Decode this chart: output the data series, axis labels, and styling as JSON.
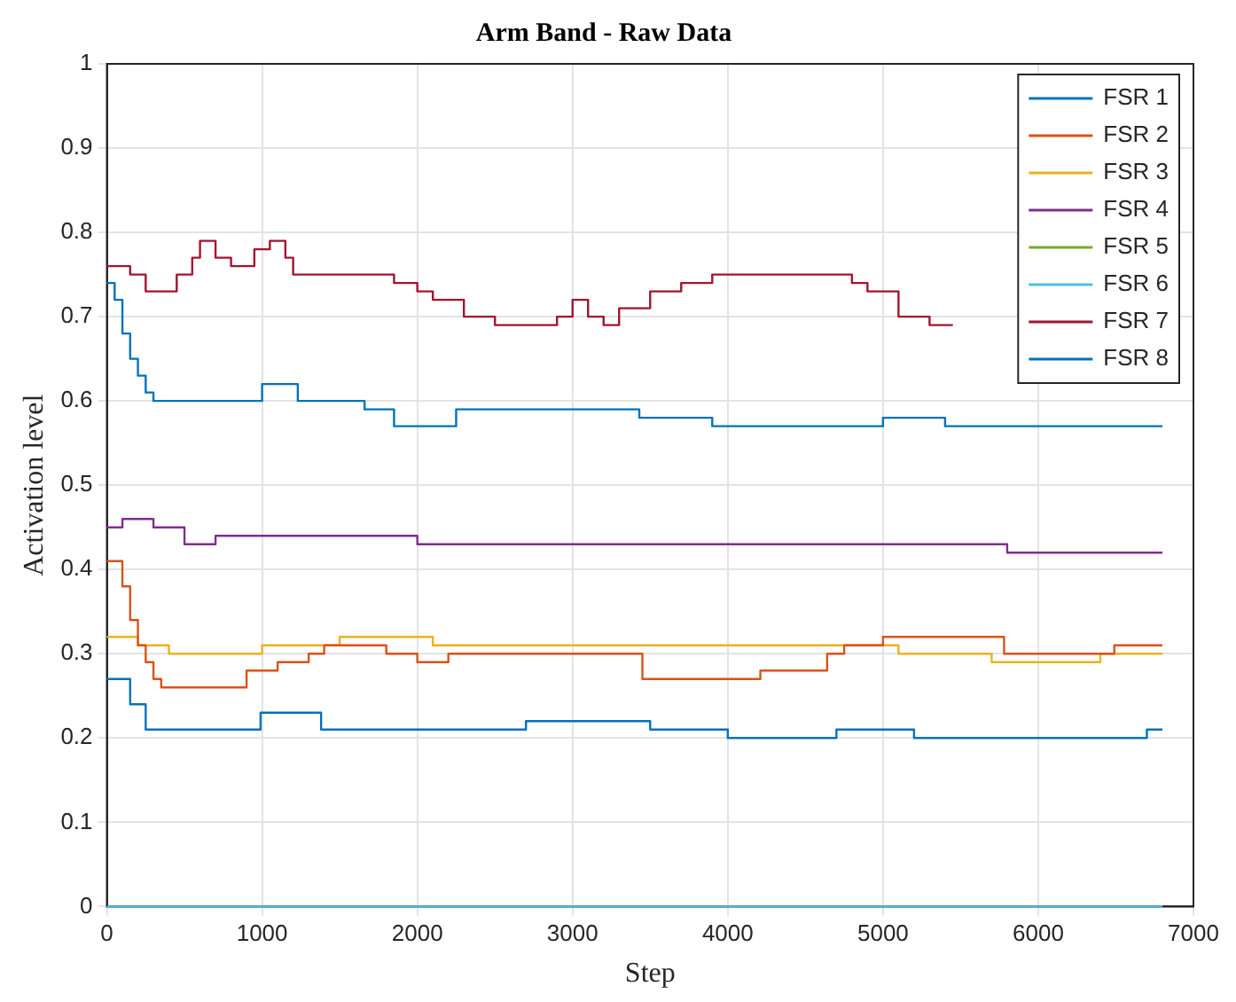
{
  "chart_data": {
    "type": "step",
    "title": "Arm Band - Raw Data",
    "xlabel": "Step",
    "ylabel": "Activation level",
    "xlim": [
      0,
      7000
    ],
    "xticks": [
      0,
      1000,
      2000,
      3000,
      4000,
      5000,
      6000,
      7000
    ],
    "ylim": [
      0,
      1
    ],
    "yticks": [
      0,
      0.1,
      0.2,
      0.3,
      0.4,
      0.5,
      0.6,
      0.7,
      0.8,
      0.9,
      1
    ],
    "grid": true,
    "legend": "top right",
    "series": [
      {
        "name": "FSR 1",
        "color": "#0072bd",
        "x": [
          0,
          50,
          100,
          150,
          200,
          250,
          300,
          1000,
          1230,
          1660,
          1850,
          2250,
          3430,
          3900,
          5000,
          5400,
          6800
        ],
        "values": [
          0.74,
          0.72,
          0.68,
          0.65,
          0.63,
          0.61,
          0.6,
          0.62,
          0.6,
          0.59,
          0.57,
          0.59,
          0.58,
          0.57,
          0.58,
          0.57,
          0.57
        ]
      },
      {
        "name": "FSR 2",
        "color": "#d95319",
        "x": [
          0,
          100,
          150,
          200,
          250,
          300,
          350,
          900,
          1100,
          1300,
          1400,
          1800,
          2000,
          2200,
          2500,
          3450,
          4210,
          4640,
          4750,
          5000,
          5780,
          6490,
          6800
        ],
        "values": [
          0.41,
          0.38,
          0.34,
          0.31,
          0.29,
          0.27,
          0.26,
          0.28,
          0.29,
          0.3,
          0.31,
          0.3,
          0.29,
          0.3,
          0.3,
          0.27,
          0.28,
          0.3,
          0.31,
          0.32,
          0.3,
          0.31,
          0.31
        ]
      },
      {
        "name": "FSR 3",
        "color": "#edb120",
        "x": [
          0,
          200,
          400,
          900,
          1000,
          1500,
          2100,
          3500,
          5100,
          5700,
          6400,
          6800
        ],
        "values": [
          0.32,
          0.31,
          0.3,
          0.3,
          0.31,
          0.32,
          0.31,
          0.31,
          0.3,
          0.29,
          0.3,
          0.3
        ]
      },
      {
        "name": "FSR 4",
        "color": "#7e2f8e",
        "x": [
          0,
          100,
          300,
          500,
          700,
          2000,
          5800,
          6800
        ],
        "values": [
          0.45,
          0.46,
          0.45,
          0.43,
          0.44,
          0.43,
          0.42,
          0.42
        ]
      },
      {
        "name": "FSR 5",
        "color": "#77ac30"
      },
      {
        "name": "FSR 6",
        "color": "#4dbeee",
        "x": [
          0,
          6800
        ],
        "values": [
          0,
          0
        ]
      },
      {
        "name": "FSR 7",
        "color": "#a2142f",
        "x": [
          0,
          150,
          250,
          450,
          550,
          600,
          700,
          800,
          950,
          1050,
          1150,
          1200,
          1850,
          2000,
          2100,
          2300,
          2500,
          2900,
          3000,
          3100,
          3200,
          3300,
          3500,
          3700,
          3900,
          4800,
          4900,
          5100,
          5300,
          5450
        ],
        "values": [
          0.76,
          0.75,
          0.73,
          0.75,
          0.77,
          0.79,
          0.77,
          0.76,
          0.78,
          0.79,
          0.77,
          0.75,
          0.74,
          0.73,
          0.72,
          0.7,
          0.69,
          0.7,
          0.72,
          0.7,
          0.69,
          0.71,
          0.73,
          0.74,
          0.75,
          0.74,
          0.73,
          0.7,
          0.69,
          0.69
        ]
      },
      {
        "name": "FSR 8",
        "color": "#0072bd",
        "x": [
          0,
          150,
          250,
          900,
          990,
          1380,
          2700,
          3500,
          4000,
          4700,
          5200,
          6700,
          6800
        ],
        "values": [
          0.27,
          0.24,
          0.21,
          0.21,
          0.23,
          0.21,
          0.22,
          0.21,
          0.2,
          0.21,
          0.2,
          0.21,
          0.21
        ]
      }
    ]
  }
}
